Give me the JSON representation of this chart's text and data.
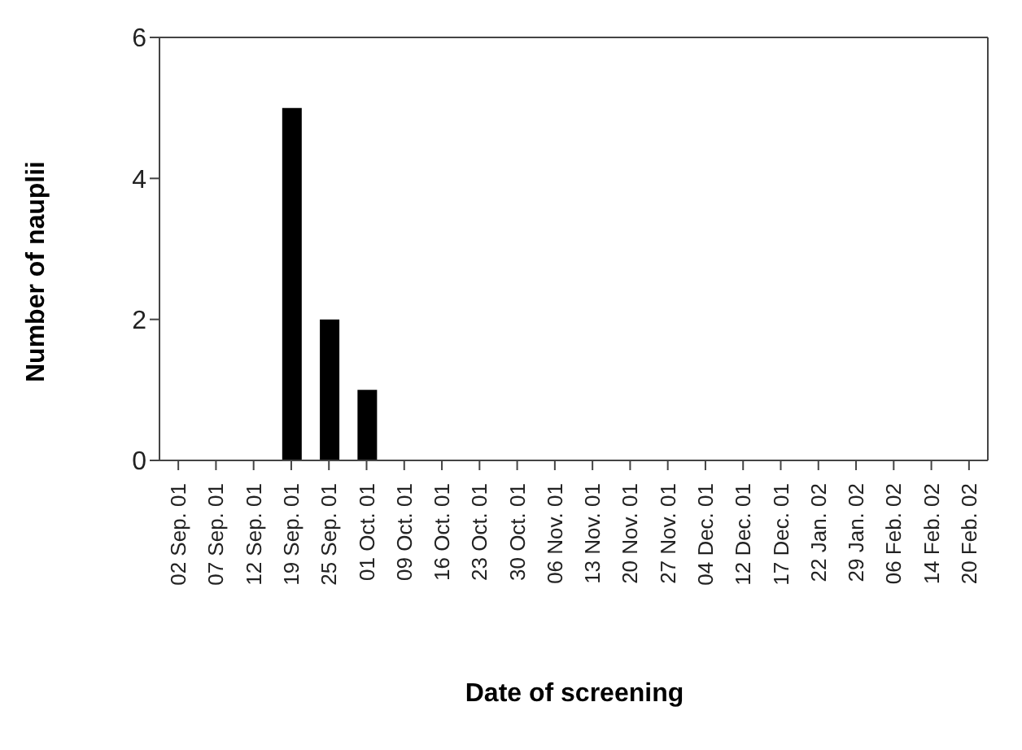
{
  "chart_data": {
    "type": "bar",
    "xlabel": "Date of screening",
    "ylabel": "Number of nauplii",
    "categories": [
      "02 Sep. 01",
      "07 Sep. 01",
      "12 Sep. 01",
      "19 Sep. 01",
      "25 Sep. 01",
      "01 Oct. 01",
      "09 Oct. 01",
      "16 Oct. 01",
      "23 Oct. 01",
      "30 Oct. 01",
      "06 Nov. 01",
      "13 Nov. 01",
      "20 Nov. 01",
      "27 Nov. 01",
      "04 Dec. 01",
      "12 Dec. 01",
      "17 Dec. 01",
      "22 Jan. 02",
      "29 Jan. 02",
      "06 Feb. 02",
      "14 Feb. 02",
      "20 Feb. 02"
    ],
    "values": [
      0,
      0,
      0,
      5,
      2,
      1,
      0,
      0,
      0,
      0,
      0,
      0,
      0,
      0,
      0,
      0,
      0,
      0,
      0,
      0,
      0,
      0
    ],
    "color": "#000000",
    "ylim": [
      0,
      6
    ],
    "yticks": [
      0,
      2,
      4,
      6
    ],
    "grid": false
  }
}
